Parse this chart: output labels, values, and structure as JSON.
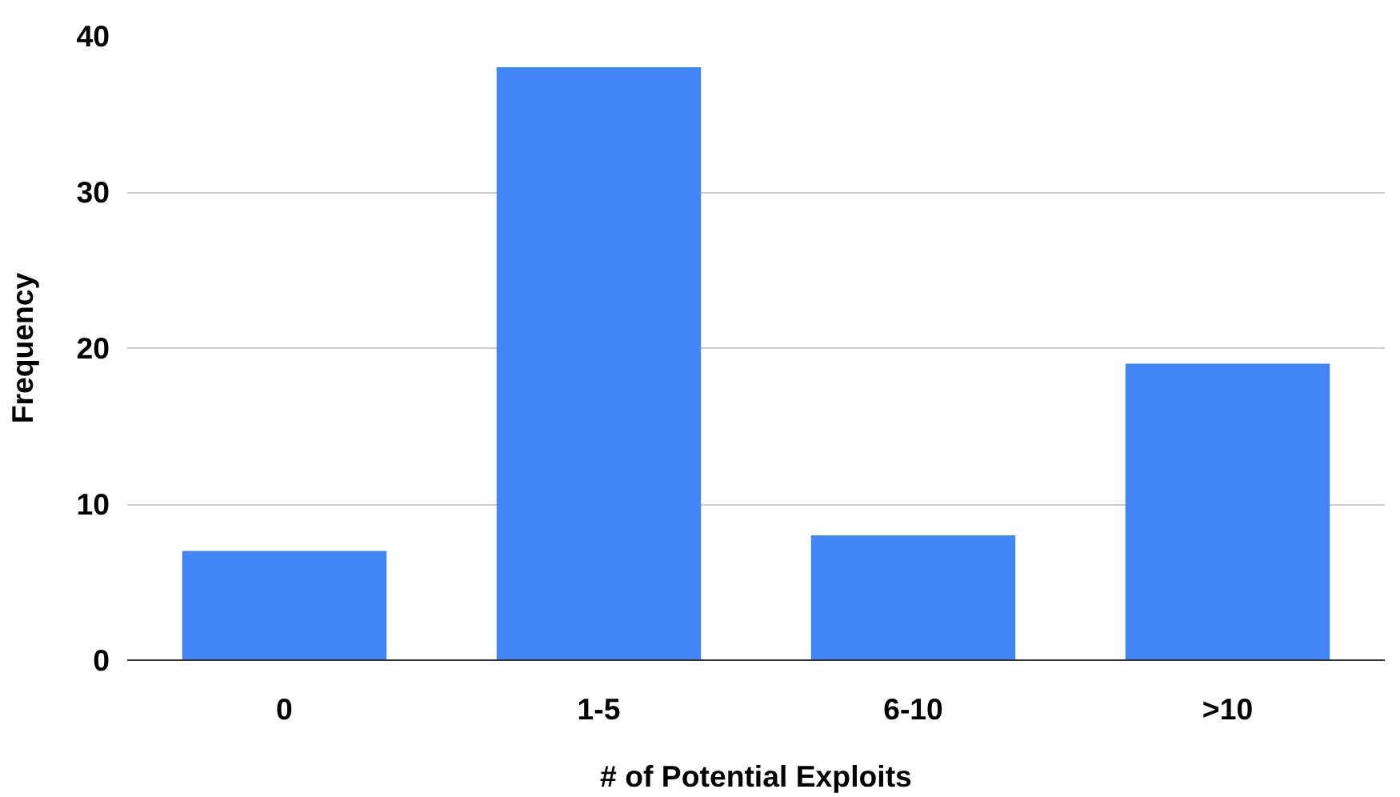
{
  "chart_data": {
    "type": "bar",
    "xlabel": "# of Potential Exploits",
    "ylabel": "Frequency",
    "categories": [
      "0",
      "1-5",
      "6-10",
      ">10"
    ],
    "values": [
      7,
      38,
      8,
      19
    ],
    "color": "#4285f4",
    "ylim": [
      0,
      40
    ],
    "yticks": [
      0,
      10,
      20,
      30,
      40
    ],
    "grid": "y"
  }
}
